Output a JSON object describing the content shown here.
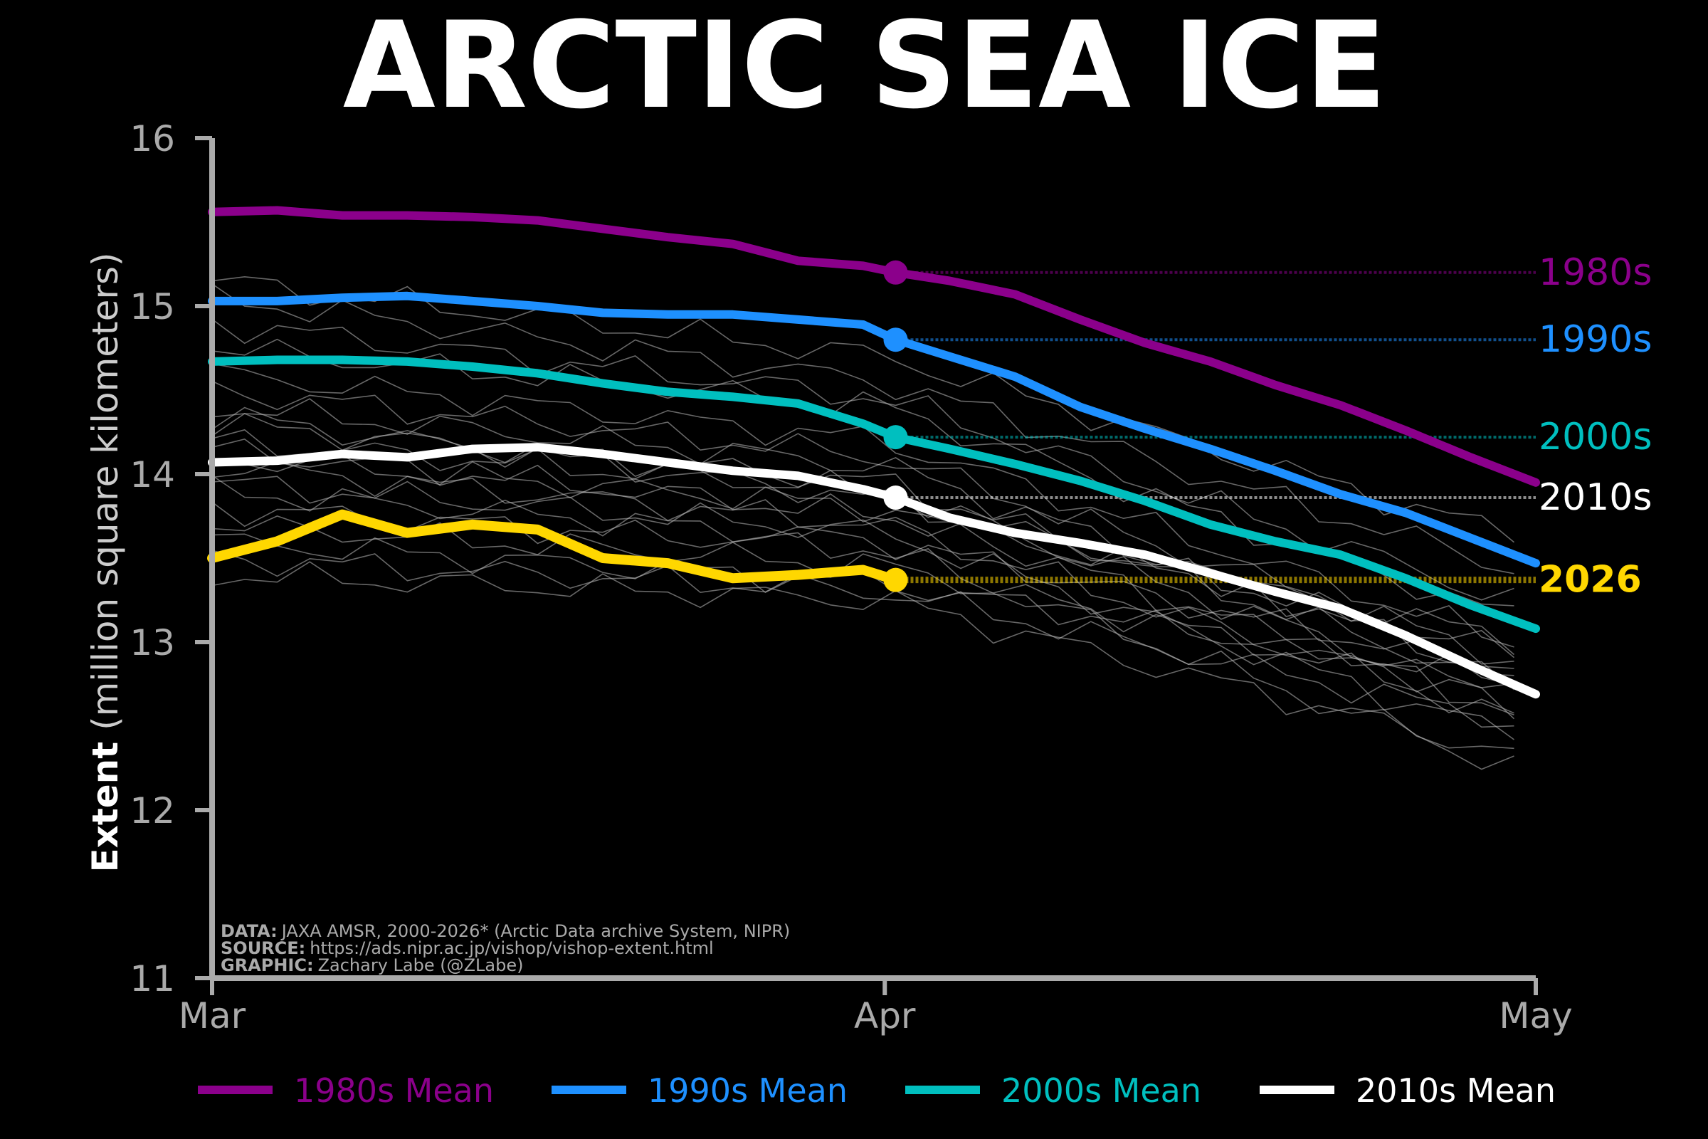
{
  "chart_data": {
    "type": "line",
    "title": "ARCTIC SEA ICE",
    "ylabel_bold": "Extent",
    "ylabel_rest": "(million square kilometers)",
    "xlabel": "",
    "ylim": [
      11,
      16
    ],
    "yticks": [
      11,
      12,
      13,
      14,
      15,
      16
    ],
    "xlim_days": [
      0,
      61
    ],
    "xticks": [
      {
        "day": 0,
        "label": "Mar"
      },
      {
        "day": 31,
        "label": "Apr"
      },
      {
        "day": 61,
        "label": "May"
      }
    ],
    "current_day": 31.5,
    "x_days": [
      0,
      3,
      6,
      9,
      12,
      15,
      18,
      21,
      24,
      27,
      30,
      31.5,
      34,
      37,
      40,
      43,
      46,
      49,
      52,
      55,
      58,
      61
    ],
    "series": [
      {
        "name": "1980s Mean",
        "label": "1980s",
        "color": "#8B008B",
        "current": 15.2,
        "values": [
          15.56,
          15.57,
          15.54,
          15.54,
          15.53,
          15.51,
          15.46,
          15.41,
          15.37,
          15.27,
          15.24,
          15.2,
          15.15,
          15.07,
          14.92,
          14.78,
          14.67,
          14.53,
          14.41,
          14.26,
          14.1,
          13.95
        ]
      },
      {
        "name": "1990s Mean",
        "label": "1990s",
        "color": "#1E90FF",
        "current": 14.8,
        "values": [
          15.03,
          15.03,
          15.05,
          15.06,
          15.03,
          15.0,
          14.96,
          14.95,
          14.95,
          14.92,
          14.89,
          14.8,
          14.7,
          14.58,
          14.4,
          14.27,
          14.15,
          14.02,
          13.88,
          13.77,
          13.62,
          13.47
        ]
      },
      {
        "name": "2000s Mean",
        "label": "2000s",
        "color": "#00BFBF",
        "current": 14.22,
        "values": [
          14.67,
          14.68,
          14.68,
          14.67,
          14.64,
          14.6,
          14.54,
          14.49,
          14.46,
          14.42,
          14.3,
          14.22,
          14.15,
          14.06,
          13.96,
          13.84,
          13.7,
          13.6,
          13.52,
          13.38,
          13.22,
          13.08
        ]
      },
      {
        "name": "2010s Mean",
        "label": "2010s",
        "color": "#FFFFFF",
        "current": 13.86,
        "values": [
          14.07,
          14.08,
          14.12,
          14.1,
          14.15,
          14.16,
          14.12,
          14.07,
          14.02,
          13.99,
          13.91,
          13.86,
          13.74,
          13.65,
          13.59,
          13.52,
          13.41,
          13.3,
          13.2,
          13.04,
          12.86,
          12.69
        ]
      }
    ],
    "current_year": {
      "name": "2026",
      "label": "2026",
      "color": "#FFD700",
      "current": 13.37,
      "values": [
        13.5,
        13.6,
        13.76,
        13.65,
        13.7,
        13.67,
        13.5,
        13.47,
        13.38,
        13.4,
        13.43,
        13.37
      ]
    },
    "individual_years_approx": [
      [
        15.15,
        14.7,
        13.6
      ],
      [
        15.05,
        14.55,
        13.4
      ],
      [
        14.9,
        14.45,
        13.2
      ],
      [
        14.75,
        14.4,
        13.1
      ],
      [
        14.6,
        14.2,
        12.95
      ],
      [
        14.5,
        14.1,
        12.85
      ],
      [
        14.4,
        14.05,
        12.75
      ],
      [
        14.3,
        13.95,
        12.7
      ],
      [
        14.2,
        13.9,
        12.6
      ],
      [
        14.1,
        13.8,
        12.55
      ],
      [
        14.05,
        13.7,
        12.5
      ],
      [
        13.95,
        13.65,
        12.4
      ],
      [
        13.9,
        13.6,
        12.8
      ],
      [
        13.8,
        13.55,
        12.2
      ],
      [
        13.7,
        13.45,
        12.65
      ],
      [
        13.6,
        13.35,
        12.75
      ],
      [
        13.5,
        13.3,
        12.5
      ],
      [
        13.4,
        13.25,
        12.3
      ],
      [
        14.35,
        13.85,
        12.9
      ],
      [
        14.15,
        13.75,
        13.0
      ]
    ],
    "legend_placement": "bottom"
  },
  "credits": {
    "data_label": "DATA:",
    "data_text": "JAXA AMSR, 2000-2026* (Arctic Data archive System, NIPR)",
    "source_label": "SOURCE:",
    "source_text": "https://ads.nipr.ac.jp/vishop/vishop-extent.html",
    "graphic_label": "GRAPHIC:",
    "graphic_text": "Zachary Labe (@ZLabe)"
  }
}
